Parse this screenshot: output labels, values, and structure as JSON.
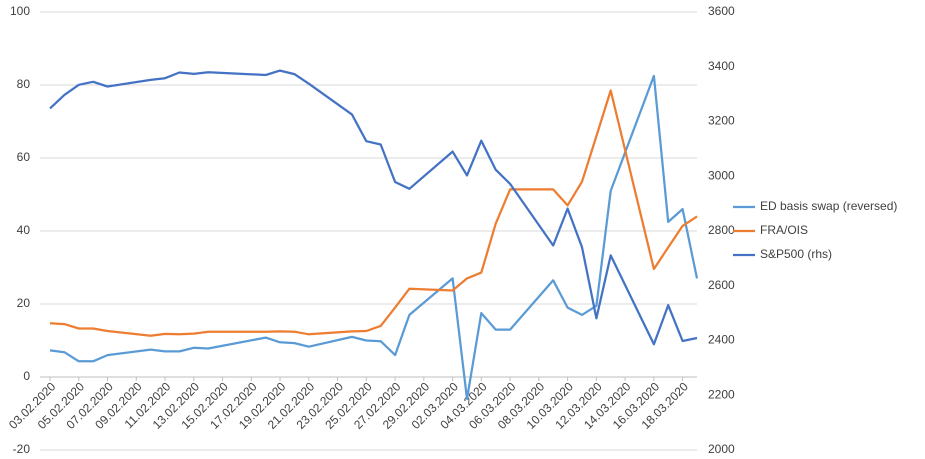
{
  "chart_data": {
    "type": "line",
    "x": [
      "03.02.2020",
      "04.02.2020",
      "05.02.2020",
      "06.02.2020",
      "07.02.2020",
      "10.02.2020",
      "11.02.2020",
      "12.02.2020",
      "13.02.2020",
      "14.02.2020",
      "18.02.2020",
      "19.02.2020",
      "20.02.2020",
      "21.02.2020",
      "24.02.2020",
      "25.02.2020",
      "26.02.2020",
      "27.02.2020",
      "28.02.2020",
      "02.03.2020",
      "03.03.2020",
      "04.03.2020",
      "05.03.2020",
      "06.03.2020",
      "09.03.2020",
      "10.03.2020",
      "11.03.2020",
      "12.03.2020",
      "13.03.2020",
      "16.03.2020",
      "17.03.2020",
      "18.03.2020",
      "19.03.2020"
    ],
    "series": [
      {
        "name": "ED basis swap (reversed)",
        "color": "#5b9bd5",
        "values": [
          7.3,
          6.8,
          4.3,
          4.3,
          6,
          7.5,
          7,
          7,
          8,
          7.8,
          10.8,
          9.5,
          9.3,
          8.3,
          11,
          10,
          9.8,
          6,
          17,
          27,
          -6,
          17.5,
          13,
          13,
          26.5,
          19,
          17,
          19.5,
          51,
          82.5,
          42.5,
          46,
          27
        ]
      },
      {
        "name": "FRA/OIS",
        "color": "#ed7d31",
        "values": [
          14.7,
          14.5,
          13.3,
          13.3,
          12.6,
          11.3,
          11.8,
          11.7,
          11.9,
          12.4,
          12.4,
          12.5,
          12.4,
          11.7,
          12.5,
          12.6,
          14,
          19,
          24.2,
          23.7,
          27,
          28.6,
          42,
          51.4,
          51.4,
          47,
          53.5,
          66,
          78.5,
          29.6,
          35.5,
          41.4,
          44
        ]
      },
      {
        "name": "S&P500 (rhs)",
        "color": "#4472c4",
        "axis": "y2",
        "values": [
          3248,
          3297,
          3334,
          3345,
          3328,
          3352,
          3358,
          3379,
          3374,
          3380,
          3370,
          3386,
          3373,
          3338,
          3226,
          3128,
          3116,
          2979,
          2954,
          3090,
          3003,
          3130,
          3024,
          2972,
          2747,
          2882,
          2741,
          2481,
          2711,
          2386,
          2529,
          2398,
          2409
        ]
      }
    ],
    "xticks": [
      "03.02.2020",
      "05.02.2020",
      "07.02.2020",
      "09.02.2020",
      "11.02.2020",
      "13.02.2020",
      "15.02.2020",
      "17.02.2020",
      "19.02.2020",
      "21.02.2020",
      "23.02.2020",
      "25.02.2020",
      "27.02.2020",
      "29.02.2020",
      "02.03.2020",
      "04.03.2020",
      "06.03.2020",
      "08.03.2020",
      "10.03.2020",
      "12.03.2020",
      "14.03.2020",
      "16.03.2020",
      "18.03.2020"
    ],
    "ylim": [
      -20,
      100
    ],
    "yticks": [
      -20,
      0,
      20,
      40,
      60,
      80,
      100
    ],
    "y2lim": [
      2000,
      3600
    ],
    "y2ticks": [
      2000,
      2200,
      2400,
      2600,
      2800,
      3000,
      3200,
      3400,
      3600
    ],
    "grid": true,
    "legend": "right"
  }
}
